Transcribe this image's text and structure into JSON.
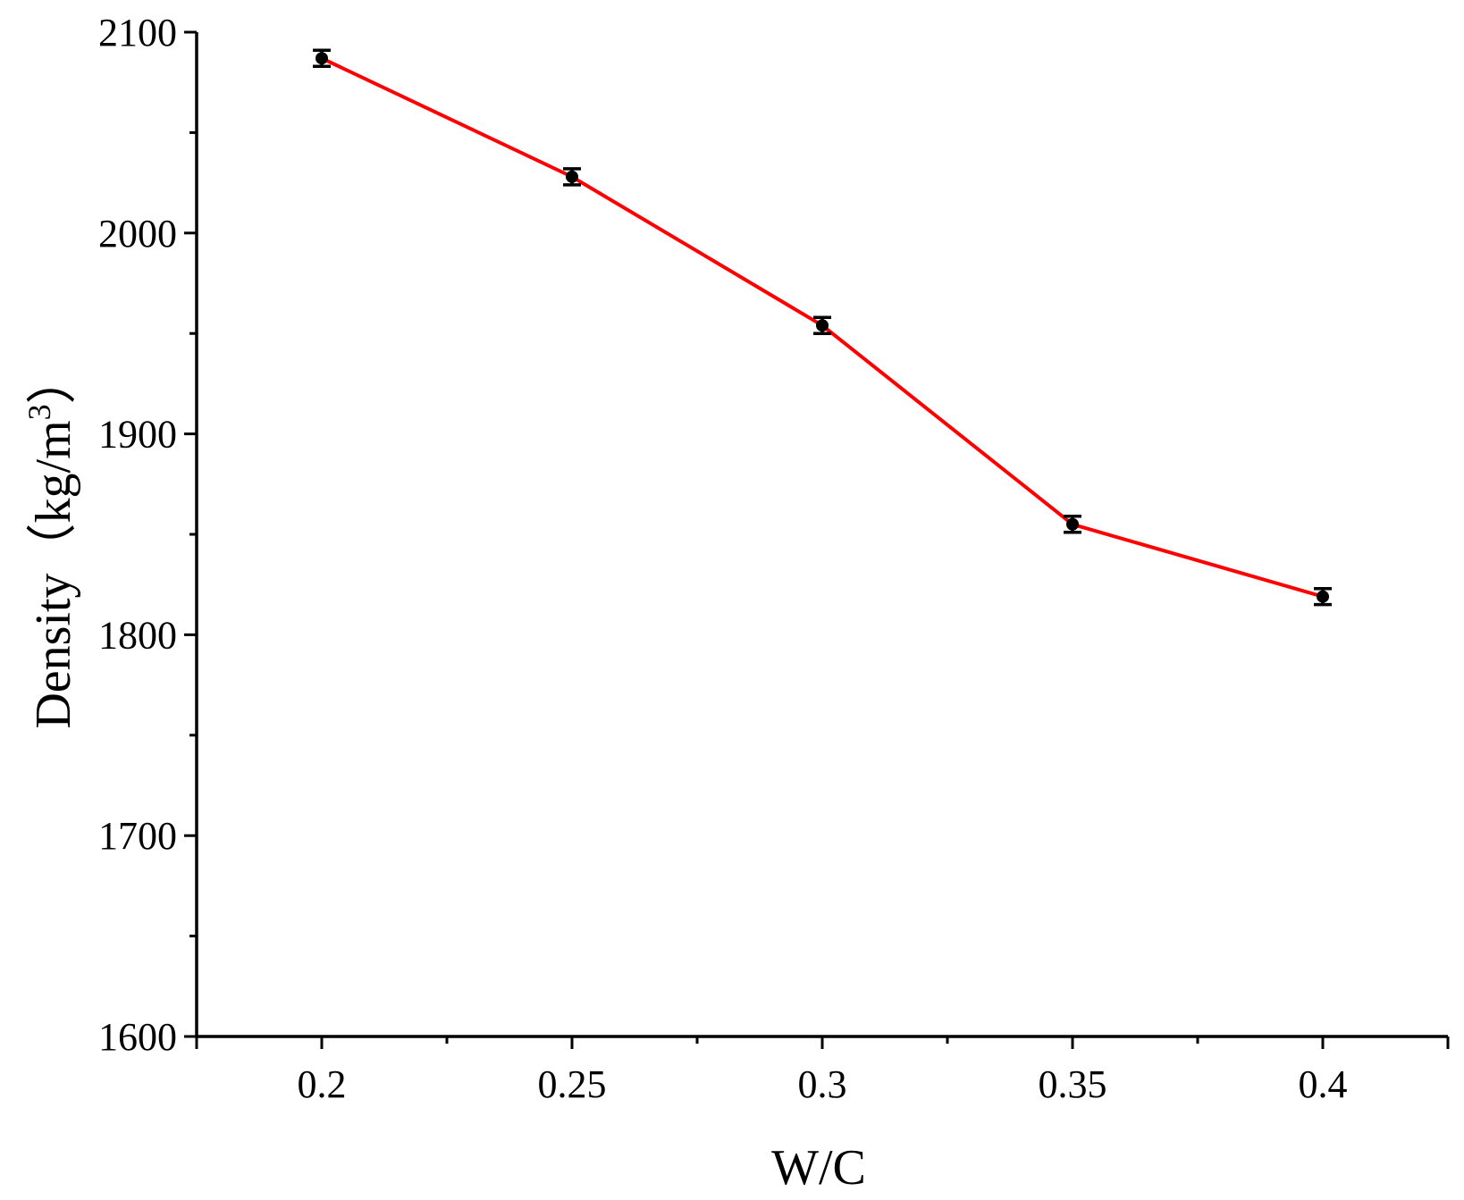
{
  "chart_data": {
    "type": "line",
    "x_axis": {
      "label": "W/C",
      "range": [
        0.175,
        0.425
      ],
      "ticks": [
        0.2,
        0.25,
        0.3,
        0.35,
        0.4
      ],
      "tick_labels": [
        "0.2",
        "0.25",
        "0.3",
        "0.35",
        "0.4"
      ],
      "minor_ticks": [
        0.225,
        0.275,
        0.325,
        0.375
      ]
    },
    "y_axis": {
      "label_main": "Density（kg/m",
      "label_sup": "3",
      "label_end": "）",
      "range": [
        1600,
        2100
      ],
      "ticks": [
        1600,
        1700,
        1800,
        1900,
        2000,
        2100
      ],
      "tick_labels": [
        "1600",
        "1700",
        "1800",
        "1900",
        "2000",
        "2100"
      ],
      "minor_ticks": [
        1650,
        1750,
        1850,
        1950,
        2050
      ]
    },
    "series": [
      {
        "x": [
          0.2,
          0.25,
          0.3,
          0.35,
          0.4
        ],
        "y": [
          2087,
          2028,
          1954,
          1855,
          1819
        ],
        "error": [
          4,
          4,
          4,
          4,
          4
        ],
        "line_color": "#ff0000",
        "marker_color": "#000000"
      }
    ],
    "grid": false,
    "legend": "none"
  }
}
